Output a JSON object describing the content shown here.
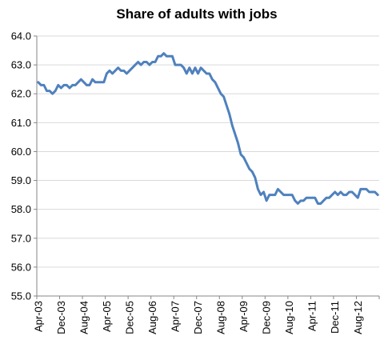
{
  "chart_data": {
    "type": "line",
    "title": "Share of adults with jobs",
    "xlabel": "",
    "ylabel": "",
    "ylim": [
      55.0,
      64.0
    ],
    "y_ticks": [
      "55.0",
      "56.0",
      "57.0",
      "58.0",
      "59.0",
      "60.0",
      "61.0",
      "62.0",
      "63.0",
      "64.0"
    ],
    "x_ticks": [
      "Apr-03",
      "Dec-03",
      "Aug-04",
      "Apr-05",
      "Dec-05",
      "Aug-06",
      "Apr-07",
      "Dec-07",
      "Aug-08",
      "Apr-09",
      "Dec-09",
      "Aug-10",
      "Apr-11",
      "Dec-11",
      "Aug-12"
    ],
    "grid": true,
    "legend": "none",
    "series_color": "#4f81bd",
    "series": [
      {
        "start": "Apr-03",
        "values": [
          62.4,
          62.3,
          62.3,
          62.1,
          62.1,
          62.0,
          62.1,
          62.3,
          62.2,
          62.3,
          62.3,
          62.2,
          62.3,
          62.3,
          62.4,
          62.5,
          62.4,
          62.3,
          62.3,
          62.5,
          62.4,
          62.4,
          62.4,
          62.4,
          62.7,
          62.8,
          62.7,
          62.8,
          62.9,
          62.8,
          62.8,
          62.7,
          62.8,
          62.9,
          63.0,
          63.1,
          63.0,
          63.1,
          63.1,
          63.0,
          63.1,
          63.1,
          63.3,
          63.3,
          63.4,
          63.3,
          63.3,
          63.3,
          63.0,
          63.0,
          63.0,
          62.9,
          62.7,
          62.9,
          62.7,
          62.9,
          62.7,
          62.9,
          62.8,
          62.7,
          62.7,
          62.5,
          62.4,
          62.2,
          62.0,
          61.9,
          61.6,
          61.3,
          60.9,
          60.6,
          60.3,
          59.9,
          59.8,
          59.6,
          59.4,
          59.3,
          59.1,
          58.7,
          58.5,
          58.6,
          58.3,
          58.5,
          58.5,
          58.5,
          58.7,
          58.6,
          58.5,
          58.5,
          58.5,
          58.5,
          58.3,
          58.2,
          58.3,
          58.3,
          58.4,
          58.4,
          58.4,
          58.4,
          58.2,
          58.2,
          58.3,
          58.4,
          58.4,
          58.5,
          58.6,
          58.5,
          58.6,
          58.5,
          58.5,
          58.6,
          58.6,
          58.5,
          58.4,
          58.7,
          58.7,
          58.7,
          58.6,
          58.6,
          58.6,
          58.5
        ]
      }
    ]
  }
}
